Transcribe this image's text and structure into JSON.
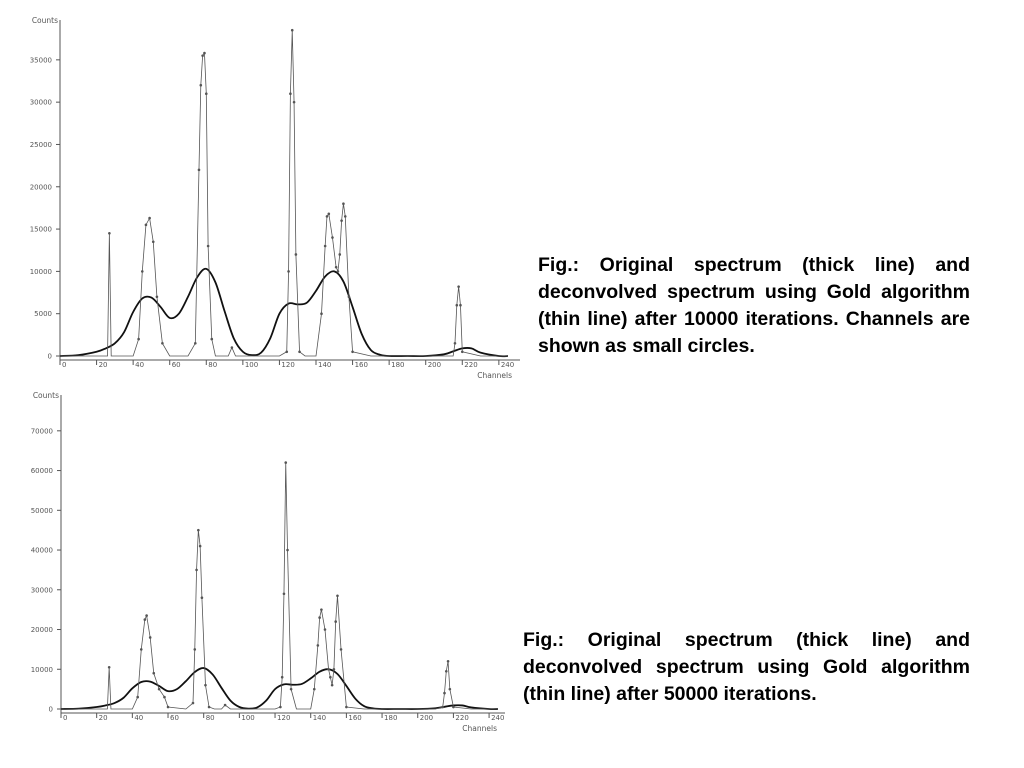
{
  "chart_data": [
    {
      "type": "line",
      "title": "",
      "xlabel": "Channels",
      "ylabel": "Counts",
      "xlim": [
        0,
        245
      ],
      "ylim": [
        0,
        39000
      ],
      "x_ticks": [
        0,
        20,
        40,
        60,
        80,
        100,
        120,
        140,
        160,
        180,
        200,
        220,
        240
      ],
      "y_ticks": [
        0,
        5000,
        10000,
        15000,
        20000,
        25000,
        30000,
        35000
      ],
      "grid": false,
      "legend": "none",
      "series": [
        {
          "style": "thick",
          "x": [
            0,
            10,
            20,
            25,
            30,
            35,
            40,
            45,
            50,
            55,
            60,
            65,
            70,
            75,
            80,
            85,
            90,
            95,
            100,
            105,
            110,
            115,
            120,
            125,
            130,
            135,
            140,
            145,
            150,
            155,
            160,
            165,
            170,
            175,
            180,
            190,
            200,
            210,
            215,
            220,
            225,
            230,
            240,
            245
          ],
          "y": [
            0,
            100,
            500,
            900,
            1500,
            2800,
            5200,
            6800,
            6900,
            5800,
            4500,
            5000,
            7000,
            9300,
            10300,
            8700,
            5300,
            2100,
            500,
            100,
            400,
            2100,
            5000,
            6200,
            6100,
            6300,
            7700,
            9400,
            10000,
            8800,
            5800,
            2600,
            700,
            150,
            0,
            0,
            0,
            200,
            550,
            900,
            900,
            400,
            0,
            0
          ]
        },
        {
          "style": "thin-with-circles",
          "x": [
            0,
            20,
            26,
            27,
            28,
            30,
            40,
            43,
            45,
            47,
            49,
            51,
            53,
            56,
            60,
            70,
            74,
            76,
            77,
            78,
            79,
            80,
            81,
            83,
            85,
            88,
            92,
            94,
            96,
            100,
            110,
            120,
            124,
            125,
            126,
            127,
            128,
            129,
            131,
            134,
            140,
            143,
            145,
            146,
            147,
            149,
            151,
            152,
            153,
            154,
            155,
            156,
            158,
            160,
            170,
            180,
            200,
            210,
            215,
            216,
            217,
            218,
            219,
            220,
            230,
            245
          ],
          "y": [
            0,
            0,
            0,
            14500,
            0,
            0,
            0,
            2000,
            10000,
            15500,
            16300,
            13500,
            7000,
            1500,
            0,
            0,
            1500,
            22000,
            32000,
            35500,
            35800,
            31000,
            13000,
            2000,
            0,
            0,
            0,
            1000,
            0,
            0,
            0,
            0,
            500,
            10000,
            31000,
            38500,
            30000,
            12000,
            500,
            0,
            0,
            5000,
            13000,
            16500,
            16800,
            14000,
            10500,
            10000,
            12000,
            16000,
            18000,
            16500,
            7000,
            500,
            0,
            0,
            0,
            0,
            0,
            1500,
            6000,
            8200,
            6000,
            500,
            0,
            0
          ]
        }
      ]
    },
    {
      "type": "line",
      "title": "",
      "xlabel": "Channels",
      "ylabel": "Counts",
      "xlim": [
        0,
        245
      ],
      "ylim": [
        0,
        77000
      ],
      "x_ticks": [
        0,
        20,
        40,
        60,
        80,
        100,
        120,
        140,
        160,
        180,
        200,
        220,
        240
      ],
      "y_ticks": [
        0,
        10000,
        20000,
        30000,
        40000,
        50000,
        60000,
        70000
      ],
      "grid": false,
      "legend": "none",
      "series": [
        {
          "style": "thick",
          "x": [
            0,
            10,
            20,
            25,
            30,
            35,
            40,
            45,
            50,
            55,
            60,
            65,
            70,
            75,
            80,
            85,
            90,
            95,
            100,
            105,
            110,
            115,
            120,
            125,
            130,
            135,
            140,
            145,
            150,
            155,
            160,
            165,
            170,
            175,
            180,
            190,
            200,
            210,
            215,
            220,
            225,
            230,
            240,
            245
          ],
          "y": [
            0,
            100,
            500,
            900,
            1500,
            2800,
            5200,
            6800,
            6900,
            5800,
            4500,
            5000,
            7000,
            9300,
            10300,
            8700,
            5300,
            2100,
            500,
            100,
            400,
            2100,
            5000,
            6200,
            6100,
            6300,
            7700,
            9400,
            10000,
            8800,
            5800,
            2600,
            700,
            150,
            0,
            0,
            0,
            200,
            550,
            900,
            900,
            400,
            0,
            0
          ]
        },
        {
          "style": "thin-with-circles",
          "x": [
            0,
            20,
            26,
            27,
            28,
            30,
            40,
            43,
            45,
            47,
            48,
            50,
            52,
            55,
            58,
            60,
            70,
            74,
            75,
            76,
            77,
            78,
            79,
            81,
            83,
            86,
            90,
            92,
            95,
            100,
            110,
            120,
            123,
            124,
            125,
            126,
            127,
            129,
            132,
            140,
            142,
            144,
            145,
            146,
            148,
            150,
            151,
            152,
            153,
            154,
            155,
            157,
            160,
            170,
            200,
            210,
            214,
            215,
            216,
            217,
            218,
            220,
            230,
            245
          ],
          "y": [
            0,
            0,
            0,
            10500,
            0,
            0,
            0,
            3000,
            15000,
            22500,
            23500,
            18000,
            9000,
            5000,
            3000,
            500,
            0,
            1500,
            15000,
            35000,
            45000,
            41000,
            28000,
            6000,
            500,
            0,
            0,
            1000,
            0,
            0,
            0,
            0,
            500,
            8000,
            29000,
            62000,
            40000,
            5000,
            0,
            0,
            5000,
            16000,
            23000,
            25000,
            20000,
            10000,
            8000,
            6000,
            10000,
            22000,
            28500,
            15000,
            500,
            0,
            0,
            0,
            500,
            4000,
            9500,
            12000,
            5000,
            500,
            0,
            0
          ]
        }
      ]
    }
  ],
  "captions": [
    "Fig.: Original spectrum (thick line) and deconvolved spectrum using Gold algorithm (thin line) after 10000 iterations. Channels are shown as small circles.",
    "Fig.: Original spectrum (thick line) and deconvolved spectrum using Gold algorithm (thin line) after 50000 iterations."
  ]
}
